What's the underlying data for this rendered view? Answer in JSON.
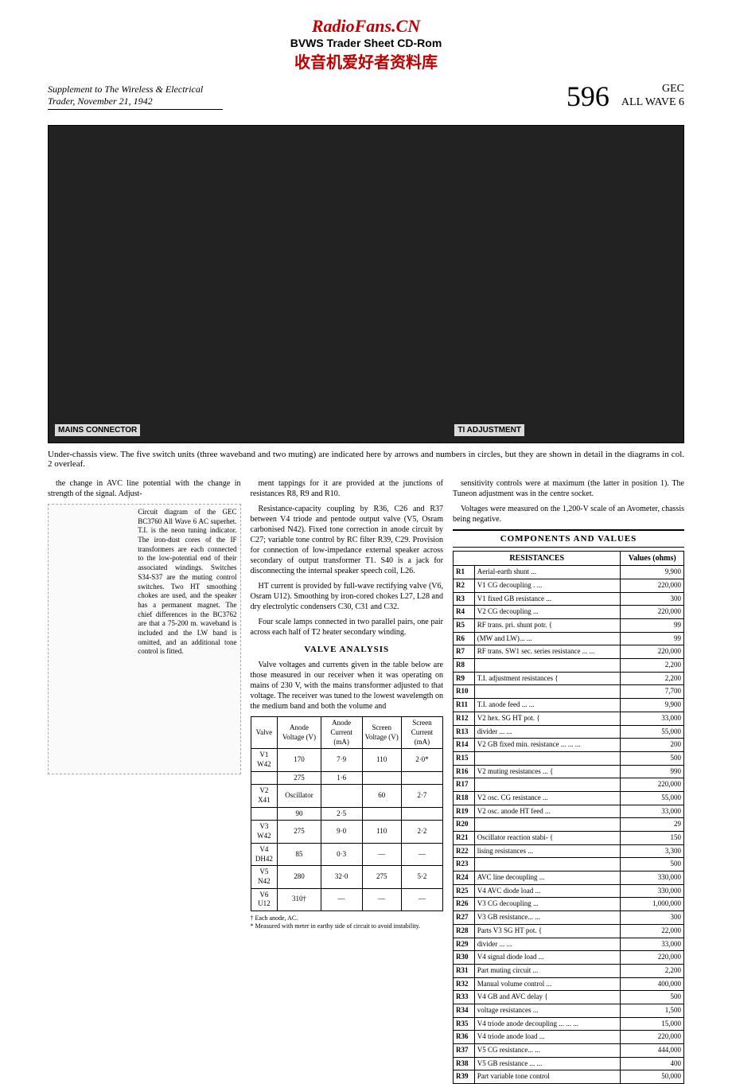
{
  "watermark": {
    "line1": "RadioFans.CN",
    "line2": "BVWS Trader Sheet CD-Rom",
    "line3": "收音机爱好者资料库"
  },
  "header": {
    "supplement": "Supplement to The Wireless & Electrical Trader, November 21, 1942",
    "issue": "596",
    "brand": "GEC",
    "model": "ALL WAVE 6"
  },
  "photo_labels": {
    "mains": "MAINS CONNECTOR",
    "ti": "TI ADJUSTMENT"
  },
  "photo_caption": "Under-chassis view. The five switch units (three waveband and two muting) are indicated here by arrows and numbers in circles, but they are shown in detail in the diagrams in col. 2 overleaf.",
  "col1": {
    "para1": "the change in AVC line potential with the change in strength of the signal. Adjust-",
    "diagram_caption": "Circuit diagram of the GEC BC3760 All Wave 6 AC superhet. T.I. is the neon tuning indicator. The iron-dust cores of the IF transformers are each connected to the low-potential end of their associated windings. Switches S34-S37 are the muting control switches. Two HT smoothing chokes are used, and the speaker has a permanent magnet. The chief differences in the BC3762 are that a 75-200 m. waveband is included and the LW band is omitted, and an additional tone control is fitted."
  },
  "col2": {
    "para1": "ment tappings for it are provided at the junctions of resistances R8, R9 and R10.",
    "para2": "Resistance-capacity coupling by R36, C26 and R37 between V4 triode and pentode output valve (V5, Osram carbonised N42). Fixed tone correction in anode circuit by C27; variable tone control by RC filter R39, C29. Provision for connection of low-impedance external speaker across secondary of output transformer T1. S40 is a jack for disconnecting the internal speaker speech coil, L26.",
    "para3": "HT current is provided by full-wave rectifying valve (V6, Osram U12). Smoothing by iron-cored chokes L27, L28 and dry electrolytic condensers C30, C31 and C32.",
    "para4": "Four scale lamps connected in two parallel pairs, one pair across each half of T2 heater secondary winding.",
    "heading": "VALVE ANALYSIS",
    "para5": "Valve voltages and currents given in the table below are those measured in our receiver when it was operating on mains of 230 V, with the mains transformer adjusted to that voltage. The receiver was tuned to the lowest wavelength on the medium band and both the volume and",
    "valve_table": {
      "headers": [
        "Valve",
        "Anode Voltage (V)",
        "Anode Current (mA)",
        "Screen Voltage (V)",
        "Screen Current (mA)"
      ],
      "rows": [
        [
          "V1 W42",
          "170",
          "7·9",
          "110",
          "2·0*"
        ],
        [
          "",
          "275",
          "1·6",
          "",
          ""
        ],
        [
          "V2 X41",
          "Oscillator",
          "",
          "60",
          "2·7"
        ],
        [
          "",
          "90",
          "2·5",
          "",
          ""
        ],
        [
          "V3 W42",
          "275",
          "9·0",
          "110",
          "2·2"
        ],
        [
          "V4 DH42",
          "85",
          "0·3",
          "—",
          "—"
        ],
        [
          "V5 N42",
          "280",
          "32·0",
          "275",
          "5·2"
        ],
        [
          "V6 U12",
          "310†",
          "—",
          "—",
          "—"
        ]
      ]
    },
    "footnote": "† Each anode, AC.\n* Measured with meter in earthy side of circuit to avoid instability."
  },
  "col3": {
    "para1": "sensitivity controls were at maximum (the latter in position 1). The Tuneon adjustment was in the centre socket.",
    "para2": "Voltages were measured on the 1,200-V scale of an Avometer, chassis being negative.",
    "components_heading": "COMPONENTS AND VALUES",
    "resistances_heading": "RESISTANCES",
    "values_heading": "Values (ohms)",
    "resistances": [
      [
        "R1",
        "Aerial-earth shunt ...",
        "9,900"
      ],
      [
        "R2",
        "V1 CG decoupling . ...",
        "220,000"
      ],
      [
        "R3",
        "V1 fixed GB resistance ...",
        "300"
      ],
      [
        "R4",
        "V2 CG decoupling ...",
        "220,000"
      ],
      [
        "R5",
        "RF trans. pri. shunt potr. {",
        "99"
      ],
      [
        "R6",
        "(MW and LW)... ...",
        "99"
      ],
      [
        "R7",
        "RF trans. SW1 sec. series resistance ... ...",
        "220,000"
      ],
      [
        "R8",
        "",
        "2,200"
      ],
      [
        "R9",
        "T.I. adjustment resistances {",
        "2,200"
      ],
      [
        "R10",
        "",
        "7,700"
      ],
      [
        "R11",
        "T.I. anode feed ... ...",
        "9,900"
      ],
      [
        "R12",
        "V2 hex. SG HT pot. {",
        "33,000"
      ],
      [
        "R13",
        "divider ... ...",
        "55,000"
      ],
      [
        "R14",
        "V2 GB fixed min. resistance ... ... ...",
        "200"
      ],
      [
        "R15",
        "",
        "500"
      ],
      [
        "R16",
        "V2 muting resistances ... {",
        "990"
      ],
      [
        "R17",
        "",
        "220,000"
      ],
      [
        "R18",
        "V2 osc. CG resistance ...",
        "55,000"
      ],
      [
        "R19",
        "V2 osc. anode HT feed ...",
        "33,000"
      ],
      [
        "R20",
        "",
        "29"
      ],
      [
        "R21",
        "Oscillator reaction stabi- {",
        "150"
      ],
      [
        "R22",
        "lising resistances ...",
        "3,300"
      ],
      [
        "R23",
        "",
        "500"
      ],
      [
        "R24",
        "AVC line decoupling ...",
        "330,000"
      ],
      [
        "R25",
        "V4 AVC diode load ...",
        "330,000"
      ],
      [
        "R26",
        "V3 CG decoupling ...",
        "1,000,000"
      ],
      [
        "R27",
        "V3 GB resistance... ...",
        "300"
      ],
      [
        "R28",
        "Parts V3 SG HT pot. {",
        "22,000"
      ],
      [
        "R29",
        "divider ... ...",
        "33,000"
      ],
      [
        "R30",
        "V4 signal diode load ...",
        "220,000"
      ],
      [
        "R31",
        "Part muting circuit ...",
        "2,200"
      ],
      [
        "R32",
        "Manual volume control ...",
        "400,000"
      ],
      [
        "R33",
        "V4 GB and AVC delay {",
        "500"
      ],
      [
        "R34",
        "voltage resistances ...",
        "1,500"
      ],
      [
        "R35",
        "V4 triode anode decoupling ... ... ...",
        "15,000"
      ],
      [
        "R36",
        "V4 triode anode load ...",
        "220,000"
      ],
      [
        "R37",
        "V5 CG resistance... ...",
        "444,000"
      ],
      [
        "R38",
        "V5 GB resistance ... ...",
        "400"
      ],
      [
        "R39",
        "Part variable tone control",
        "50,000"
      ]
    ]
  }
}
